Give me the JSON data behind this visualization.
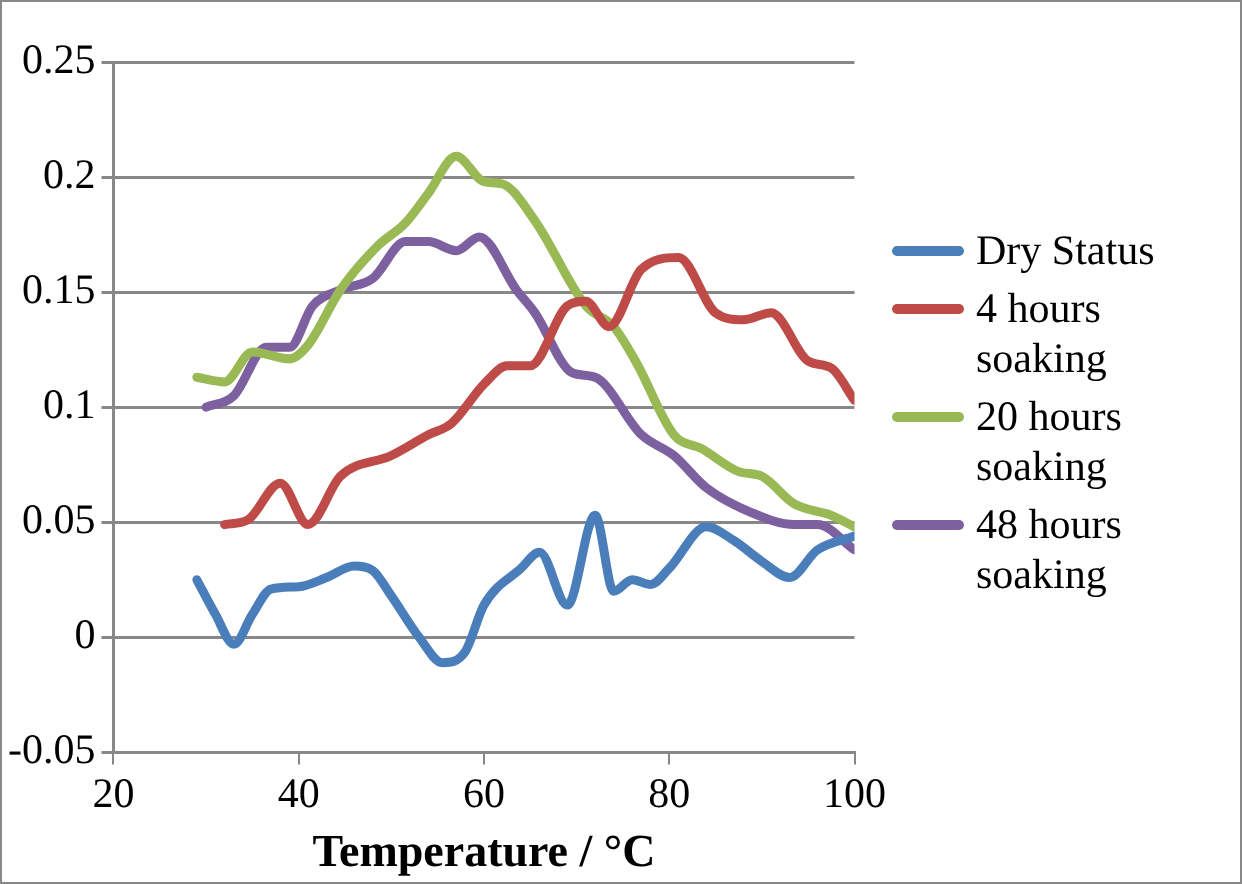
{
  "chart_data": {
    "type": "line",
    "xlabel": "Temperature / °C",
    "xlim": [
      20,
      100
    ],
    "xticks": [
      20,
      40,
      60,
      80,
      100
    ],
    "ylim": [
      -0.05,
      0.25
    ],
    "yticks": [
      -0.05,
      0,
      0.05,
      0.1,
      0.15,
      0.2,
      0.25
    ],
    "grid": "y",
    "legend": "right",
    "marker": "none",
    "line_style": "solid",
    "series": [
      {
        "name": "Dry Status",
        "color": "#4a7ebb",
        "x": [
          29,
          31,
          33,
          35,
          37,
          40,
          43,
          46,
          48,
          50,
          53,
          55.5,
          58,
          60,
          64,
          66,
          69,
          72,
          74,
          76,
          78,
          80,
          84,
          87,
          90,
          93,
          96,
          100
        ],
        "values": [
          0.025,
          0.01,
          -0.003,
          0.01,
          0.021,
          0.022,
          0.026,
          0.031,
          0.029,
          0.018,
          0.0,
          -0.011,
          -0.006,
          0.014,
          0.03,
          0.037,
          0.014,
          0.053,
          0.02,
          0.025,
          0.023,
          0.03,
          0.048,
          0.042,
          0.033,
          0.026,
          0.038,
          0.044
        ]
      },
      {
        "name": "4 hours soaking",
        "color": "#be4b48",
        "x": [
          32,
          34.5,
          38,
          41,
          44.5,
          50,
          54,
          56.5,
          60,
          62.5,
          65,
          69,
          71,
          73.5,
          77,
          81,
          85,
          88,
          91,
          95,
          97.5,
          100
        ],
        "values": [
          0.049,
          0.051,
          0.067,
          0.049,
          0.07,
          0.079,
          0.088,
          0.093,
          0.11,
          0.118,
          0.118,
          0.144,
          0.146,
          0.135,
          0.16,
          0.165,
          0.141,
          0.138,
          0.141,
          0.12,
          0.117,
          0.103
        ]
      },
      {
        "name": "20 hours soaking",
        "color": "#98b954",
        "x": [
          29,
          32,
          35,
          39,
          41,
          44.5,
          48.5,
          51.5,
          54,
          57,
          60,
          62,
          65.5,
          71,
          74,
          76.5,
          80.5,
          83.5,
          87.5,
          90,
          93.5,
          97.5,
          100
        ],
        "values": [
          0.113,
          0.111,
          0.124,
          0.121,
          0.127,
          0.151,
          0.17,
          0.18,
          0.193,
          0.209,
          0.198,
          0.197,
          0.181,
          0.144,
          0.135,
          0.119,
          0.088,
          0.082,
          0.072,
          0.07,
          0.058,
          0.053,
          0.048
        ]
      },
      {
        "name": "48 hours soaking",
        "color": "#7d60a0",
        "x": [
          30,
          33,
          36.5,
          39,
          41.5,
          44.5,
          48,
          51.5,
          54,
          57,
          59.5,
          63.5,
          65.5,
          69.5,
          72,
          77,
          80.5,
          84,
          89,
          93.5,
          96,
          100
        ],
        "values": [
          0.1,
          0.105,
          0.126,
          0.126,
          0.144,
          0.151,
          0.156,
          0.172,
          0.172,
          0.168,
          0.174,
          0.151,
          0.141,
          0.115,
          0.113,
          0.088,
          0.079,
          0.065,
          0.054,
          0.049,
          0.049,
          0.038
        ]
      }
    ]
  }
}
